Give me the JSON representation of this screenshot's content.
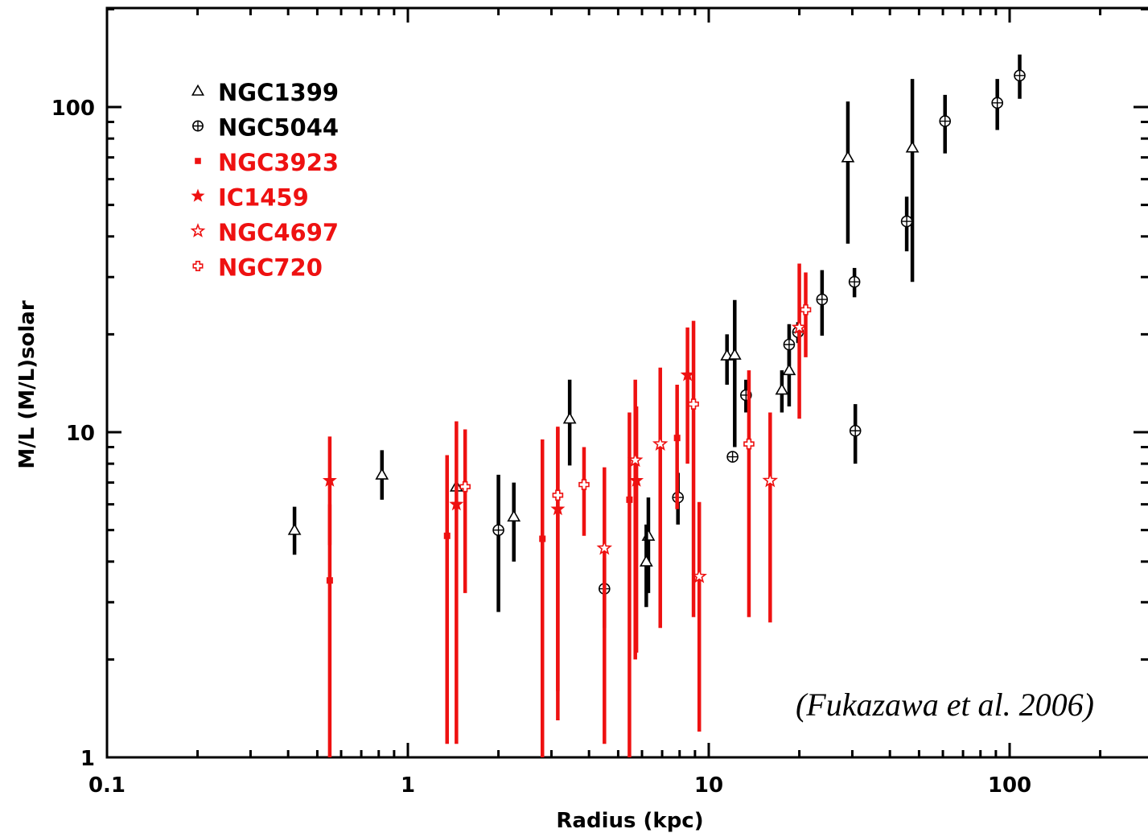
{
  "chart_data": {
    "type": "scatter",
    "title": "",
    "xlabel": "Radius (kpc)",
    "ylabel": "M/L (M/L)solar",
    "xscale": "log",
    "yscale": "log",
    "xlim": [
      0.1,
      380
    ],
    "ylim": [
      1,
      200
    ],
    "xticks": [
      {
        "v": 0.1,
        "label": "0.1"
      },
      {
        "v": 1,
        "label": "1"
      },
      {
        "v": 10,
        "label": "10"
      },
      {
        "v": 100,
        "label": "100"
      }
    ],
    "yticks": [
      {
        "v": 1,
        "label": "1"
      },
      {
        "v": 10,
        "label": "10"
      },
      {
        "v": 100,
        "label": "100"
      }
    ],
    "grid": false,
    "legend_position": "top-left",
    "annotation": "(Fukazawa et al. 2006)",
    "colors": {
      "black": "#000000",
      "red": "#ee1111"
    },
    "series": [
      {
        "name": "NGC1399",
        "marker": "triangle",
        "color": "#000000",
        "points": [
          {
            "x": 0.42,
            "y": 5.0,
            "lo": 4.2,
            "hi": 5.9
          },
          {
            "x": 0.82,
            "y": 7.4,
            "lo": 6.2,
            "hi": 8.8
          },
          {
            "x": 1.45,
            "y": 6.8,
            "lo": 6.7,
            "hi": 6.9
          },
          {
            "x": 2.25,
            "y": 5.5,
            "lo": 4.0,
            "hi": 7.0
          },
          {
            "x": 3.45,
            "y": 11.0,
            "lo": 7.9,
            "hi": 14.5
          },
          {
            "x": 6.3,
            "y": 4.8,
            "lo": 3.2,
            "hi": 6.3
          },
          {
            "x": 6.2,
            "y": 4.0,
            "lo": 2.9,
            "hi": 5.2
          },
          {
            "x": 11.5,
            "y": 17.2,
            "lo": 14.0,
            "hi": 20.0
          },
          {
            "x": 12.2,
            "y": 17.3,
            "lo": 9.0,
            "hi": 25.5
          },
          {
            "x": 17.5,
            "y": 13.5,
            "lo": 11.5,
            "hi": 15.5
          },
          {
            "x": 18.5,
            "y": 15.5,
            "lo": 12.0,
            "hi": 19.0
          },
          {
            "x": 29.0,
            "y": 70.0,
            "lo": 38.0,
            "hi": 104.0
          },
          {
            "x": 47.5,
            "y": 75.0,
            "lo": 29.0,
            "hi": 122.0
          }
        ]
      },
      {
        "name": "NGC5044",
        "marker": "circle-plus",
        "color": "#000000",
        "points": [
          {
            "x": 2.0,
            "y": 5.0,
            "lo": 2.8,
            "hi": 7.4
          },
          {
            "x": 4.5,
            "y": 3.3,
            "lo": 2.5,
            "hi": 4.1
          },
          {
            "x": 7.9,
            "y": 6.3,
            "lo": 5.2,
            "hi": 7.5
          },
          {
            "x": 12.0,
            "y": 8.4,
            "lo": 8.1,
            "hi": 8.7
          },
          {
            "x": 13.3,
            "y": 13.0,
            "lo": 11.5,
            "hi": 14.5
          },
          {
            "x": 18.5,
            "y": 18.6,
            "lo": 16.0,
            "hi": 21.5
          },
          {
            "x": 19.8,
            "y": 20.3,
            "lo": 18.8,
            "hi": 21.8
          },
          {
            "x": 23.8,
            "y": 25.6,
            "lo": 19.8,
            "hi": 31.5
          },
          {
            "x": 30.5,
            "y": 29.0,
            "lo": 26.0,
            "hi": 32.0
          },
          {
            "x": 30.7,
            "y": 10.1,
            "lo": 8.0,
            "hi": 12.2
          },
          {
            "x": 45.5,
            "y": 44.5,
            "lo": 36.0,
            "hi": 53.0
          },
          {
            "x": 61.0,
            "y": 90.5,
            "lo": 72.0,
            "hi": 109.0
          },
          {
            "x": 91.0,
            "y": 103.0,
            "lo": 85.0,
            "hi": 122.0
          },
          {
            "x": 108.0,
            "y": 125.0,
            "lo": 106.0,
            "hi": 145.0
          }
        ]
      },
      {
        "name": "NGC3923",
        "marker": "filled-square",
        "color": "#ee1111",
        "points": [
          {
            "x": 0.55,
            "y": 3.5,
            "lo": 1.0,
            "hi": 6.0
          },
          {
            "x": 1.35,
            "y": 4.8,
            "lo": 1.1,
            "hi": 8.5
          },
          {
            "x": 2.8,
            "y": 4.7,
            "lo": 1.0,
            "hi": 9.5
          },
          {
            "x": 5.45,
            "y": 6.2,
            "lo": 1.0,
            "hi": 11.5
          },
          {
            "x": 7.85,
            "y": 9.6,
            "lo": 5.8,
            "hi": 14.0
          }
        ]
      },
      {
        "name": "IC1459",
        "marker": "filled-star",
        "color": "#ee1111",
        "points": [
          {
            "x": 0.55,
            "y": 7.1,
            "lo": 4.5,
            "hi": 9.7
          },
          {
            "x": 1.45,
            "y": 6.0,
            "lo": 1.1,
            "hi": 10.8
          },
          {
            "x": 3.15,
            "y": 5.8,
            "lo": 1.3,
            "hi": 10.3
          },
          {
            "x": 5.75,
            "y": 7.1,
            "lo": 2.1,
            "hi": 12.0
          },
          {
            "x": 8.5,
            "y": 15.0,
            "lo": 8.0,
            "hi": 21.0
          }
        ]
      },
      {
        "name": "NGC4697",
        "marker": "open-star",
        "color": "#ee1111",
        "points": [
          {
            "x": 4.5,
            "y": 4.4,
            "lo": 1.1,
            "hi": 7.8
          },
          {
            "x": 5.7,
            "y": 8.2,
            "lo": 2.0,
            "hi": 14.5
          },
          {
            "x": 6.9,
            "y": 9.2,
            "lo": 2.5,
            "hi": 15.8
          },
          {
            "x": 9.3,
            "y": 3.6,
            "lo": 1.2,
            "hi": 6.1
          },
          {
            "x": 16.0,
            "y": 7.1,
            "lo": 2.6,
            "hi": 11.5
          },
          {
            "x": 20.0,
            "y": 21.0,
            "lo": 11.0,
            "hi": 33.0
          }
        ]
      },
      {
        "name": "NGC720",
        "marker": "open-cross",
        "color": "#ee1111",
        "points": [
          {
            "x": 1.55,
            "y": 6.8,
            "lo": 3.2,
            "hi": 10.2
          },
          {
            "x": 3.15,
            "y": 6.4,
            "lo": 1.6,
            "hi": 10.4
          },
          {
            "x": 3.85,
            "y": 6.9,
            "lo": 4.8,
            "hi": 9.0
          },
          {
            "x": 8.9,
            "y": 12.2,
            "lo": 2.7,
            "hi": 22.0
          },
          {
            "x": 13.6,
            "y": 9.2,
            "lo": 2.7,
            "hi": 15.5
          },
          {
            "x": 21.0,
            "y": 23.8,
            "lo": 17.0,
            "hi": 31.0
          }
        ]
      }
    ]
  }
}
